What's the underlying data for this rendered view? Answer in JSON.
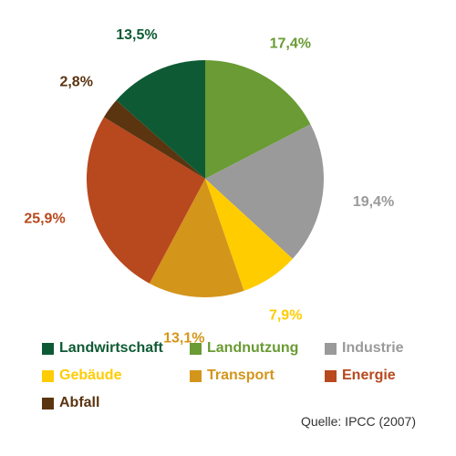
{
  "chart_data": {
    "type": "pie",
    "title": "",
    "slices": [
      {
        "name": "Landnutzung",
        "value": 17.4,
        "label": "17,4%",
        "color": "#6a9b34"
      },
      {
        "name": "Industrie",
        "value": 19.4,
        "label": "19,4%",
        "color": "#9a9a9a"
      },
      {
        "name": "Gebäude",
        "value": 7.9,
        "label": "7,9%",
        "color": "#ffcc00"
      },
      {
        "name": "Transport",
        "value": 13.1,
        "label": "13,1%",
        "color": "#d4951b"
      },
      {
        "name": "Energie",
        "value": 25.9,
        "label": "25,9%",
        "color": "#b8481e"
      },
      {
        "name": "Abfall",
        "value": 2.8,
        "label": "2,8%",
        "color": "#5b3410"
      },
      {
        "name": "Landwirtschaft",
        "value": 13.5,
        "label": "13,5%",
        "color": "#0e5a34"
      }
    ],
    "start_angle_deg": 0,
    "direction": "clockwise",
    "legend": {
      "placement": "bottom",
      "items": [
        {
          "label": "Landwirtschaft",
          "color": "#0e5a34"
        },
        {
          "label": "Landnutzung",
          "color": "#6a9b34"
        },
        {
          "label": "Industrie",
          "color": "#9a9a9a"
        },
        {
          "label": "Gebäude",
          "color": "#ffcc00"
        },
        {
          "label": "Transport",
          "color": "#d4951b"
        },
        {
          "label": "Energie",
          "color": "#b8481e"
        },
        {
          "label": "Abfall",
          "color": "#5b3410"
        }
      ]
    },
    "source": "Quelle: IPCC (2007)"
  }
}
